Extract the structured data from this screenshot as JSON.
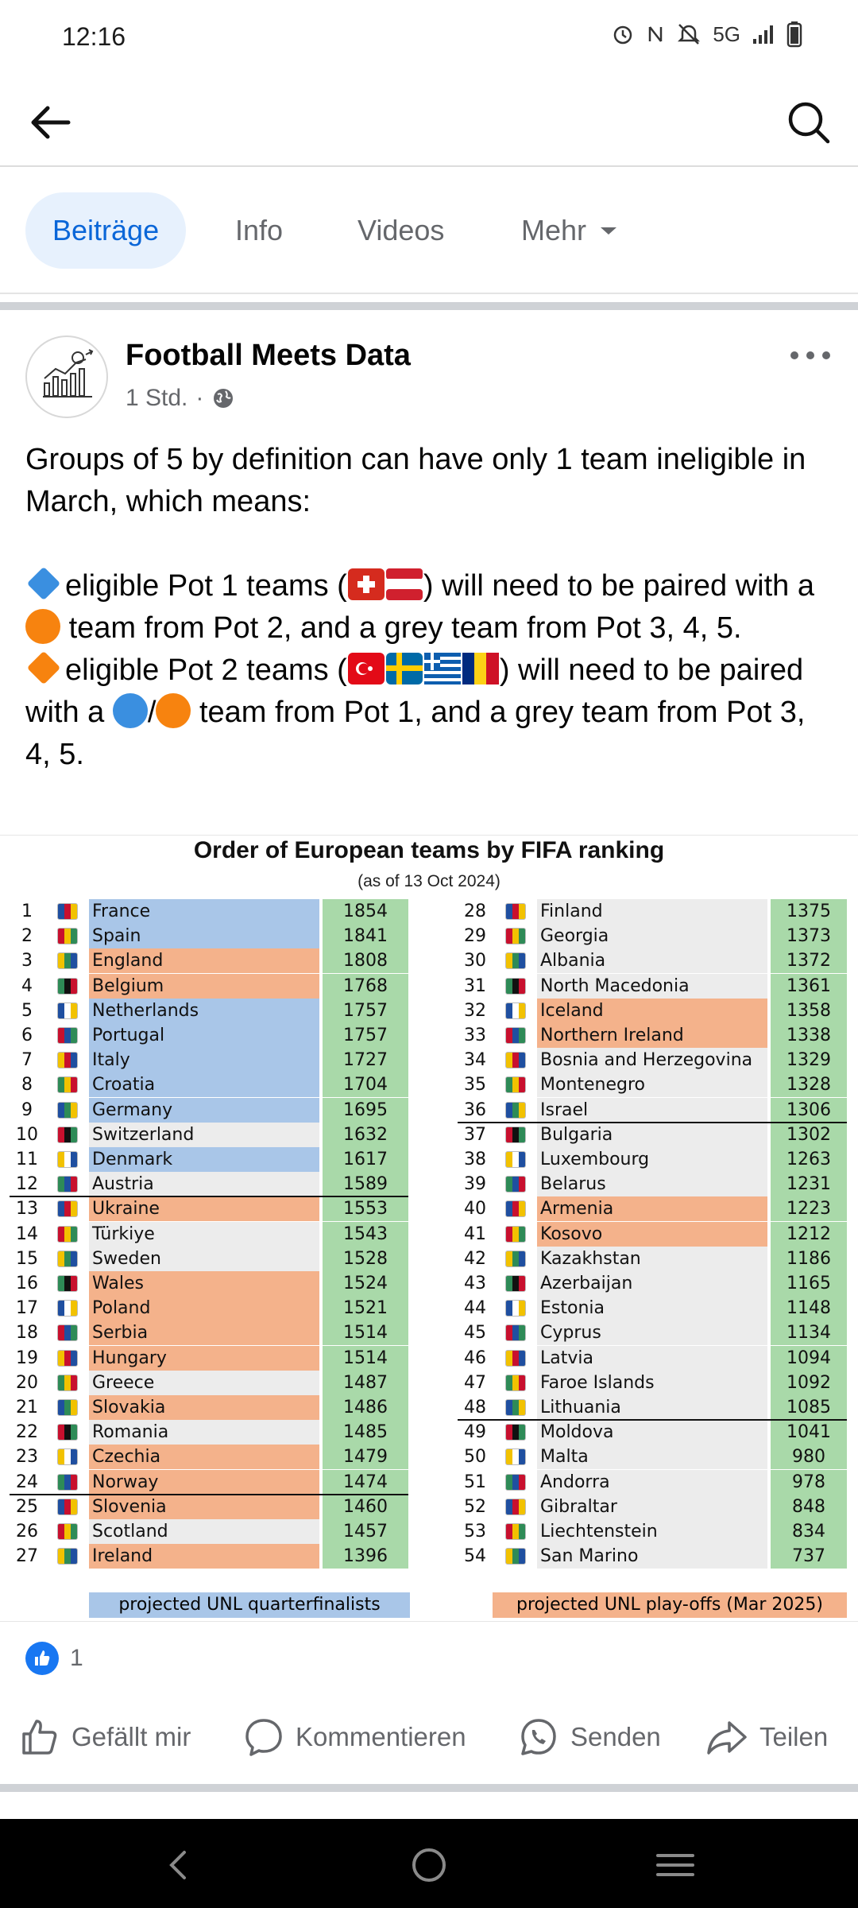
{
  "status_bar": {
    "time": "12:16",
    "network": "5G"
  },
  "tabs": [
    {
      "label": "Beiträge"
    },
    {
      "label": "Info"
    },
    {
      "label": "Videos"
    },
    {
      "label": "Mehr"
    }
  ],
  "post": {
    "author": "Football Meets Data",
    "time": "1 Std.",
    "text": {
      "line1": "Groups of 5 by definition can have only 1 team ineligible in March, which means:",
      "b1_pre": "eligible Pot 1 teams (",
      "b1_post": ") will need to be paired with a",
      "b1_end": "team from Pot 2, and a grey team from Pot 3, 4, 5.",
      "b2_pre": "eligible Pot 2 teams (",
      "b2_post": ") will need to be paired with a",
      "b2_slash": "/",
      "b2_end": "team from Pot 1, and a grey team from Pot 3, 4, 5."
    },
    "image": {
      "title": "Order of European teams by FIFA ranking",
      "subtitle": "(as of 13 Oct 2024)",
      "legend_blue": "projected UNL quarterfinalists",
      "legend_orange": "projected UNL play-offs (Mar 2025)",
      "colors": {
        "blue": "#a9c6e8",
        "orange": "#f4b28b",
        "grey": "#ececec",
        "green": "#a9d9a9"
      },
      "left": [
        {
          "rank": "1",
          "team": "France",
          "pts": "1854",
          "tag": "blue"
        },
        {
          "rank": "2",
          "team": "Spain",
          "pts": "1841",
          "tag": "blue"
        },
        {
          "rank": "3",
          "team": "England",
          "pts": "1808",
          "tag": "orange"
        },
        {
          "rank": "4",
          "team": "Belgium",
          "pts": "1768",
          "tag": "orange"
        },
        {
          "rank": "5",
          "team": "Netherlands",
          "pts": "1757",
          "tag": "blue"
        },
        {
          "rank": "6",
          "team": "Portugal",
          "pts": "1757",
          "tag": "blue"
        },
        {
          "rank": "7",
          "team": "Italy",
          "pts": "1727",
          "tag": "blue"
        },
        {
          "rank": "8",
          "team": "Croatia",
          "pts": "1704",
          "tag": "blue"
        },
        {
          "rank": "9",
          "team": "Germany",
          "pts": "1695",
          "tag": "blue"
        },
        {
          "rank": "10",
          "team": "Switzerland",
          "pts": "1632",
          "tag": "grey"
        },
        {
          "rank": "11",
          "team": "Denmark",
          "pts": "1617",
          "tag": "blue"
        },
        {
          "rank": "12",
          "team": "Austria",
          "pts": "1589",
          "tag": "grey"
        },
        {
          "rank": "13",
          "team": "Ukraine",
          "pts": "1553",
          "tag": "orange"
        },
        {
          "rank": "14",
          "team": "Türkiye",
          "pts": "1543",
          "tag": "grey"
        },
        {
          "rank": "15",
          "team": "Sweden",
          "pts": "1528",
          "tag": "grey"
        },
        {
          "rank": "16",
          "team": "Wales",
          "pts": "1524",
          "tag": "orange"
        },
        {
          "rank": "17",
          "team": "Poland",
          "pts": "1521",
          "tag": "orange"
        },
        {
          "rank": "18",
          "team": "Serbia",
          "pts": "1514",
          "tag": "orange"
        },
        {
          "rank": "19",
          "team": "Hungary",
          "pts": "1514",
          "tag": "orange"
        },
        {
          "rank": "20",
          "team": "Greece",
          "pts": "1487",
          "tag": "grey"
        },
        {
          "rank": "21",
          "team": "Slovakia",
          "pts": "1486",
          "tag": "orange"
        },
        {
          "rank": "22",
          "team": "Romania",
          "pts": "1485",
          "tag": "grey"
        },
        {
          "rank": "23",
          "team": "Czechia",
          "pts": "1479",
          "tag": "orange"
        },
        {
          "rank": "24",
          "team": "Norway",
          "pts": "1474",
          "tag": "orange"
        },
        {
          "rank": "25",
          "team": "Slovenia",
          "pts": "1460",
          "tag": "orange"
        },
        {
          "rank": "26",
          "team": "Scotland",
          "pts": "1457",
          "tag": "grey"
        },
        {
          "rank": "27",
          "team": "Ireland",
          "pts": "1396",
          "tag": "orange"
        }
      ],
      "right": [
        {
          "rank": "28",
          "team": "Finland",
          "pts": "1375",
          "tag": "grey"
        },
        {
          "rank": "29",
          "team": "Georgia",
          "pts": "1373",
          "tag": "grey"
        },
        {
          "rank": "30",
          "team": "Albania",
          "pts": "1372",
          "tag": "grey"
        },
        {
          "rank": "31",
          "team": "North Macedonia",
          "pts": "1361",
          "tag": "grey"
        },
        {
          "rank": "32",
          "team": "Iceland",
          "pts": "1358",
          "tag": "orange"
        },
        {
          "rank": "33",
          "team": "Northern Ireland",
          "pts": "1338",
          "tag": "orange"
        },
        {
          "rank": "34",
          "team": "Bosnia and Herzegovina",
          "pts": "1329",
          "tag": "grey"
        },
        {
          "rank": "35",
          "team": "Montenegro",
          "pts": "1328",
          "tag": "grey"
        },
        {
          "rank": "36",
          "team": "Israel",
          "pts": "1306",
          "tag": "grey"
        },
        {
          "rank": "37",
          "team": "Bulgaria",
          "pts": "1302",
          "tag": "grey"
        },
        {
          "rank": "38",
          "team": "Luxembourg",
          "pts": "1263",
          "tag": "grey"
        },
        {
          "rank": "39",
          "team": "Belarus",
          "pts": "1231",
          "tag": "grey"
        },
        {
          "rank": "40",
          "team": "Armenia",
          "pts": "1223",
          "tag": "orange"
        },
        {
          "rank": "41",
          "team": "Kosovo",
          "pts": "1212",
          "tag": "orange"
        },
        {
          "rank": "42",
          "team": "Kazakhstan",
          "pts": "1186",
          "tag": "grey"
        },
        {
          "rank": "43",
          "team": "Azerbaijan",
          "pts": "1165",
          "tag": "grey"
        },
        {
          "rank": "44",
          "team": "Estonia",
          "pts": "1148",
          "tag": "grey"
        },
        {
          "rank": "45",
          "team": "Cyprus",
          "pts": "1134",
          "tag": "grey"
        },
        {
          "rank": "46",
          "team": "Latvia",
          "pts": "1094",
          "tag": "grey"
        },
        {
          "rank": "47",
          "team": "Faroe Islands",
          "pts": "1092",
          "tag": "grey"
        },
        {
          "rank": "48",
          "team": "Lithuania",
          "pts": "1085",
          "tag": "grey"
        },
        {
          "rank": "49",
          "team": "Moldova",
          "pts": "1041",
          "tag": "grey"
        },
        {
          "rank": "50",
          "team": "Malta",
          "pts": "980",
          "tag": "grey"
        },
        {
          "rank": "51",
          "team": "Andorra",
          "pts": "978",
          "tag": "grey"
        },
        {
          "rank": "52",
          "team": "Gibraltar",
          "pts": "848",
          "tag": "grey"
        },
        {
          "rank": "53",
          "team": "Liechtenstein",
          "pts": "834",
          "tag": "grey"
        },
        {
          "rank": "54",
          "team": "San Marino",
          "pts": "737",
          "tag": "grey"
        }
      ]
    },
    "reaction_count": "1",
    "actions": {
      "like": "Gefällt mir",
      "comment": "Kommentieren",
      "send": "Senden",
      "share": "Teilen"
    }
  }
}
